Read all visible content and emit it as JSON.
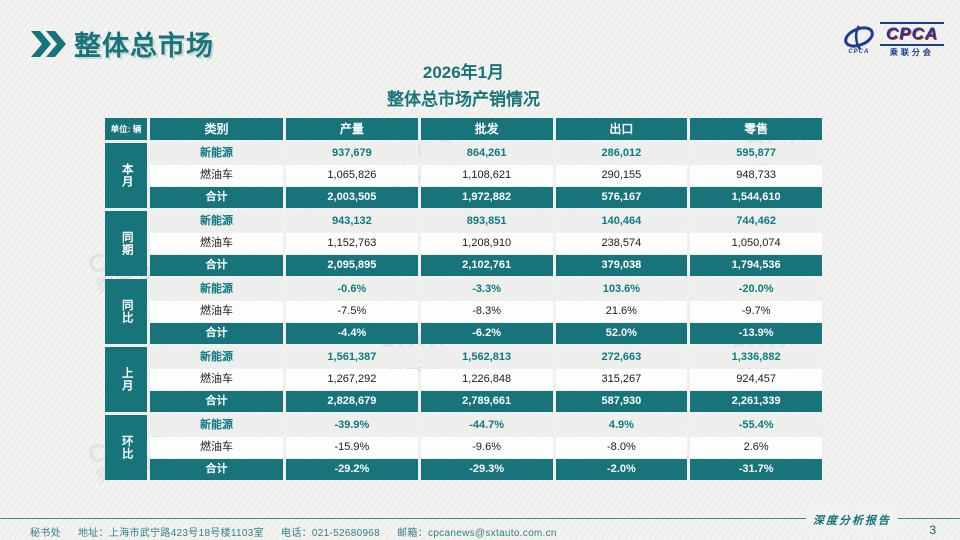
{
  "slide": {
    "header": {
      "title": "整体总市场"
    },
    "logo": {
      "name": "CPCA",
      "subtitle": "乘联分会",
      "emblem_caption": "CPCA"
    },
    "main_title": {
      "line1": "2026年1月",
      "line2": "整体总市场产销情况"
    },
    "watermark": {
      "line1": "CPCA",
      "line2": "乘联分会"
    },
    "footer": {
      "secretariat": "秘书处",
      "address": "地址：上海市武宁路423号18号楼1103室",
      "phone": "电话：021-52680968",
      "email": "邮箱：cpcanews@sxtauto.com.cn",
      "report_label": "深度分析报告",
      "page_number": "3"
    },
    "colors": {
      "teal": "#17747a",
      "navy": "#1c3e8e",
      "red": "#c32127"
    }
  },
  "table": {
    "unit_label": "单位: 辆",
    "category_header": "类别",
    "metric_headers": [
      "产量",
      "批发",
      "出口",
      "零售"
    ],
    "groups": [
      {
        "label": "本月",
        "rows": [
          {
            "category": "新能源",
            "style": "nev",
            "values": [
              "937,679",
              "864,261",
              "286,012",
              "595,877"
            ]
          },
          {
            "category": "燃油车",
            "style": "fuel",
            "values": [
              "1,065,826",
              "1,108,621",
              "290,155",
              "948,733"
            ]
          },
          {
            "category": "合计",
            "style": "total",
            "values": [
              "2,003,505",
              "1,972,882",
              "576,167",
              "1,544,610"
            ]
          }
        ]
      },
      {
        "label": "同期",
        "rows": [
          {
            "category": "新能源",
            "style": "nev",
            "values": [
              "943,132",
              "893,851",
              "140,464",
              "744,462"
            ]
          },
          {
            "category": "燃油车",
            "style": "fuel",
            "values": [
              "1,152,763",
              "1,208,910",
              "238,574",
              "1,050,074"
            ]
          },
          {
            "category": "合计",
            "style": "total",
            "values": [
              "2,095,895",
              "2,102,761",
              "379,038",
              "1,794,536"
            ]
          }
        ]
      },
      {
        "label": "同比",
        "rows": [
          {
            "category": "新能源",
            "style": "nev",
            "values": [
              "-0.6%",
              "-3.3%",
              "103.6%",
              "-20.0%"
            ]
          },
          {
            "category": "燃油车",
            "style": "fuel",
            "values": [
              "-7.5%",
              "-8.3%",
              "21.6%",
              "-9.7%"
            ]
          },
          {
            "category": "合计",
            "style": "total",
            "values": [
              "-4.4%",
              "-6.2%",
              "52.0%",
              "-13.9%"
            ]
          }
        ]
      },
      {
        "label": "上月",
        "rows": [
          {
            "category": "新能源",
            "style": "nev",
            "values": [
              "1,561,387",
              "1,562,813",
              "272,663",
              "1,336,882"
            ]
          },
          {
            "category": "燃油车",
            "style": "fuel",
            "values": [
              "1,267,292",
              "1,226,848",
              "315,267",
              "924,457"
            ]
          },
          {
            "category": "合计",
            "style": "total",
            "values": [
              "2,828,679",
              "2,789,661",
              "587,930",
              "2,261,339"
            ]
          }
        ]
      },
      {
        "label": "环比",
        "rows": [
          {
            "category": "新能源",
            "style": "nev",
            "values": [
              "-39.9%",
              "-44.7%",
              "4.9%",
              "-55.4%"
            ]
          },
          {
            "category": "燃油车",
            "style": "fuel",
            "values": [
              "-15.9%",
              "-9.6%",
              "-8.0%",
              "2.6%"
            ]
          },
          {
            "category": "合计",
            "style": "total",
            "values": [
              "-29.2%",
              "-29.3%",
              "-2.0%",
              "-31.7%"
            ]
          }
        ]
      }
    ]
  }
}
